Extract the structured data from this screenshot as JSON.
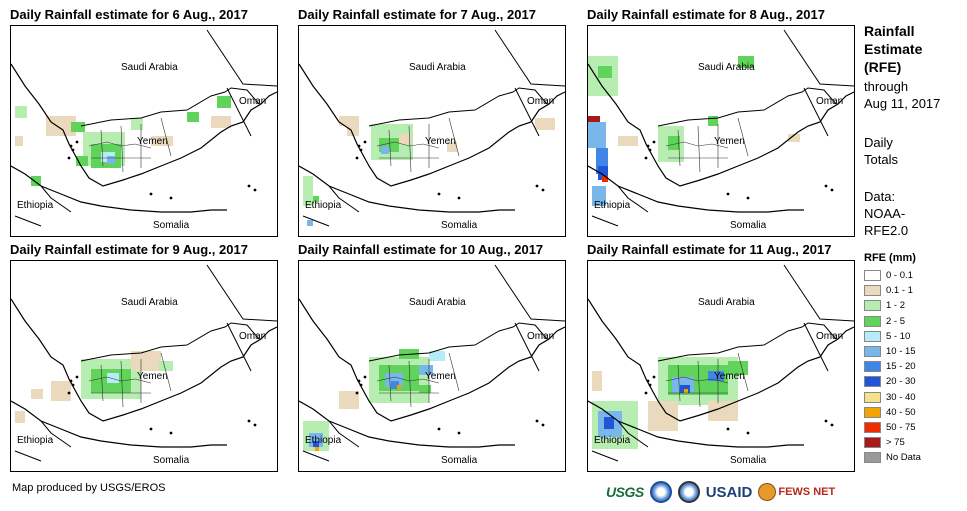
{
  "maps": [
    {
      "title": "Daily Rainfall estimate for 6 Aug., 2017",
      "rain": "d6"
    },
    {
      "title": "Daily Rainfall estimate for 7 Aug., 2017",
      "rain": "d7"
    },
    {
      "title": "Daily Rainfall estimate for 8 Aug., 2017",
      "rain": "d8"
    },
    {
      "title": "Daily Rainfall estimate for 9 Aug., 2017",
      "rain": "d9"
    },
    {
      "title": "Daily Rainfall estimate for 10 Aug., 2017",
      "rain": "d10"
    },
    {
      "title": "Daily Rainfall estimate for 11 Aug., 2017",
      "rain": "d11"
    }
  ],
  "country_labels": {
    "saudi_arabia": "Saudi Arabia",
    "oman": "Oman",
    "yemen": "Yemen",
    "ethiopia": "Ethiopia",
    "somalia": "Somalia"
  },
  "side_panel": {
    "heading_line1": "Rainfall",
    "heading_line2": "Estimate",
    "heading_line3": "(RFE)",
    "through": "through",
    "date": "Aug 11, 2017",
    "daily": "Daily",
    "totals": "Totals",
    "data_label": "Data:",
    "data_source_1": "NOAA-",
    "data_source_2": "RFE2.0"
  },
  "legend": {
    "title": "RFE (mm)",
    "items": [
      {
        "label": "0 - 0.1",
        "color": "#ffffff"
      },
      {
        "label": "0.1 - 1",
        "color": "#ead9bd"
      },
      {
        "label": "1 - 2",
        "color": "#b7edb0"
      },
      {
        "label": "2 - 5",
        "color": "#5fd35a"
      },
      {
        "label": "5 - 10",
        "color": "#b6ecf7"
      },
      {
        "label": "10 - 15",
        "color": "#79b6ea"
      },
      {
        "label": "15 - 20",
        "color": "#3f86e6"
      },
      {
        "label": "20 - 30",
        "color": "#1f55d6"
      },
      {
        "label": "30 - 40",
        "color": "#f7e08a"
      },
      {
        "label": "40 - 50",
        "color": "#f5a300"
      },
      {
        "label": "50 - 75",
        "color": "#f22a00"
      },
      {
        "label": "> 75",
        "color": "#a61a1a"
      },
      {
        "label": "No Data",
        "color": "#9a9a9a"
      }
    ]
  },
  "footer": {
    "credit": "Map produced by USGS/EROS"
  },
  "logos": {
    "usgs": "USGS",
    "usaid": "USAID",
    "fews": "FEWS NET"
  }
}
